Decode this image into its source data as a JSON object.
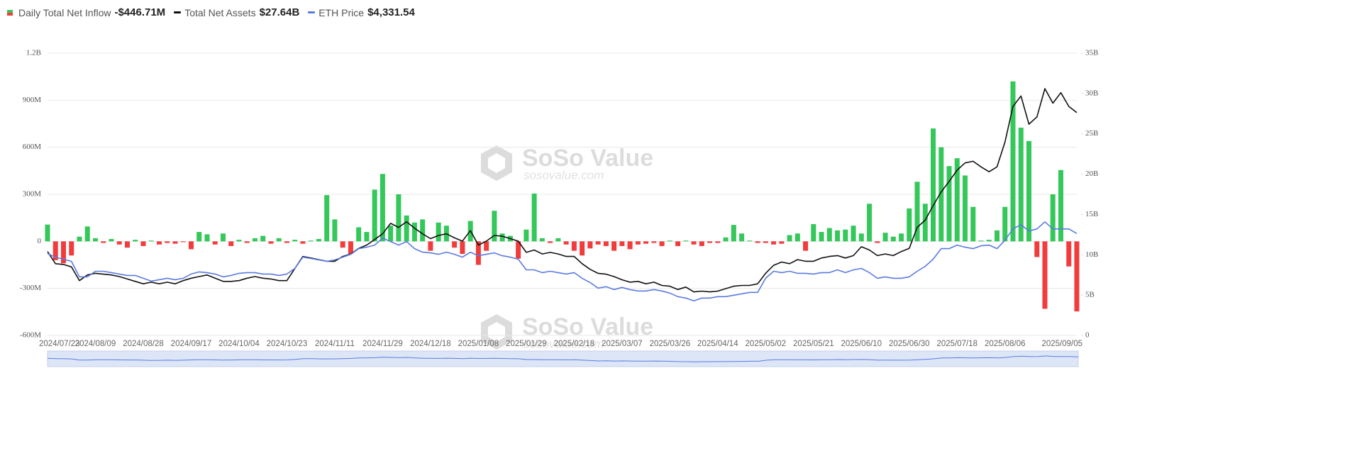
{
  "chart_data": {
    "type": "bar-line",
    "watermark": {
      "name": "SoSo Value",
      "url": "sosovalue.com"
    },
    "categories": [
      "2024/07/23",
      null,
      null,
      null,
      null,
      null,
      "2024/08/09",
      null,
      null,
      null,
      null,
      null,
      "2024/08/28",
      null,
      null,
      null,
      null,
      null,
      "2024/09/17",
      null,
      null,
      null,
      null,
      null,
      "2024/10/04",
      null,
      null,
      null,
      null,
      null,
      "2024/10/23",
      null,
      null,
      null,
      null,
      null,
      "2024/11/11",
      null,
      null,
      null,
      null,
      null,
      "2024/11/29",
      null,
      null,
      null,
      null,
      null,
      "2024/12/18",
      null,
      null,
      null,
      null,
      null,
      "2025/01/08",
      null,
      null,
      null,
      null,
      null,
      "2025/01/29",
      null,
      null,
      null,
      null,
      null,
      "2025/02/18",
      null,
      null,
      null,
      null,
      null,
      "2025/03/07",
      null,
      null,
      null,
      null,
      null,
      "2025/03/26",
      null,
      null,
      null,
      null,
      null,
      "2025/04/14",
      null,
      null,
      null,
      null,
      null,
      "2025/05/02",
      null,
      null,
      null,
      null,
      null,
      "2025/05/21",
      null,
      null,
      null,
      null,
      null,
      "2025/06/10",
      null,
      null,
      null,
      null,
      null,
      "2025/06/30",
      null,
      null,
      null,
      null,
      null,
      "2025/07/18",
      null,
      null,
      null,
      null,
      null,
      "2025/08/06",
      null,
      null,
      null,
      null,
      null,
      null,
      null,
      null,
      "2025/09/05"
    ],
    "series": [
      {
        "name": "Daily Total Net Inflow",
        "latest_label": "-$446.71M",
        "type": "bar",
        "axis": "y",
        "color": "#34c759",
        "negative_color": "#f23c3c",
        "values": [
          107,
          -120,
          -140,
          -90,
          30,
          95,
          20,
          -10,
          15,
          -20,
          -40,
          10,
          -30,
          5,
          -20,
          -10,
          -15,
          -5,
          -50,
          60,
          45,
          -20,
          50,
          -30,
          10,
          -10,
          20,
          35,
          -15,
          20,
          -10,
          10,
          -15,
          5,
          15,
          295,
          140,
          -40,
          -80,
          90,
          60,
          330,
          430,
          100,
          300,
          165,
          120,
          140,
          -60,
          120,
          100,
          -40,
          -80,
          130,
          -150,
          -60,
          195,
          50,
          35,
          -110,
          75,
          305,
          20,
          -10,
          20,
          -20,
          -60,
          -90,
          -45,
          -20,
          -30,
          -60,
          -30,
          -50,
          -20,
          -15,
          -10,
          -30,
          5,
          -30,
          5,
          -20,
          -30,
          -10,
          -10,
          25,
          105,
          50,
          5,
          -10,
          -10,
          -20,
          -15,
          40,
          50,
          -60,
          110,
          60,
          85,
          70,
          75,
          100,
          50,
          240,
          -10,
          55,
          30,
          50,
          210,
          380,
          240,
          720,
          600,
          480,
          530,
          420,
          220,
          5,
          10,
          70,
          220,
          1020,
          725,
          640,
          -100,
          -430,
          300,
          455,
          -160,
          -446.71
        ]
      },
      {
        "name": "Total Net Assets",
        "latest_label": "$27.64B",
        "type": "line",
        "axis": "y2",
        "color": "#111111",
        "values": [
          10.4,
          8.9,
          8.8,
          8.5,
          6.8,
          7.5,
          7.7,
          7.6,
          7.5,
          7.3,
          7.0,
          6.7,
          6.4,
          6.6,
          6.4,
          6.6,
          6.4,
          6.8,
          7.1,
          7.3,
          7.5,
          7.1,
          6.7,
          6.7,
          6.8,
          7.1,
          7.3,
          7.1,
          7.0,
          6.8,
          6.8,
          8.3,
          9.8,
          9.6,
          9.4,
          9.2,
          9.2,
          9.8,
          10.1,
          10.8,
          11.2,
          11.9,
          12.6,
          13.9,
          13.4,
          14.1,
          13.3,
          12.6,
          12.0,
          12.4,
          12.6,
          12.1,
          11.7,
          13.0,
          11.2,
          11.7,
          12.4,
          12.3,
          12.0,
          11.7,
          10.3,
          10.6,
          10.1,
          10.3,
          10.1,
          9.8,
          9.8,
          8.9,
          8.2,
          7.7,
          7.6,
          7.3,
          6.9,
          6.6,
          6.7,
          6.4,
          6.6,
          6.2,
          6.1,
          5.7,
          6.0,
          5.4,
          5.5,
          5.4,
          5.5,
          5.8,
          6.1,
          6.2,
          6.2,
          6.4,
          7.7,
          8.7,
          9.1,
          8.9,
          9.4,
          9.2,
          9.2,
          9.6,
          9.8,
          9.9,
          9.6,
          9.9,
          11.0,
          10.6,
          9.9,
          10.1,
          9.9,
          10.4,
          10.8,
          13.4,
          14.3,
          16.1,
          17.8,
          19.1,
          20.5,
          21.4,
          21.6,
          20.9,
          20.3,
          20.9,
          24.0,
          28.4,
          29.7,
          26.2,
          27.1,
          30.6,
          28.8,
          30.1,
          28.4,
          27.64
        ]
      },
      {
        "name": "ETH Price",
        "latest_label": "$4,331.54",
        "type": "line",
        "axis": "y3",
        "color": "#5b7be0",
        "values": [
          3480,
          3330,
          3240,
          3150,
          2490,
          2490,
          2730,
          2730,
          2670,
          2610,
          2550,
          2550,
          2430,
          2310,
          2370,
          2430,
          2370,
          2430,
          2610,
          2700,
          2670,
          2610,
          2490,
          2550,
          2640,
          2670,
          2670,
          2610,
          2610,
          2550,
          2610,
          2850,
          3330,
          3270,
          3210,
          3150,
          3210,
          3330,
          3450,
          3690,
          3750,
          3840,
          4140,
          3990,
          3840,
          3990,
          3690,
          3540,
          3510,
          3450,
          3540,
          3450,
          3330,
          3540,
          3390,
          3450,
          3510,
          3390,
          3330,
          3240,
          2790,
          2790,
          2670,
          2730,
          2670,
          2610,
          2670,
          2430,
          2250,
          2010,
          2070,
          1950,
          2040,
          1950,
          1890,
          1890,
          1950,
          1890,
          1800,
          1650,
          1590,
          1470,
          1590,
          1590,
          1650,
          1650,
          1710,
          1770,
          1830,
          1830,
          2430,
          2730,
          2670,
          2730,
          2640,
          2640,
          2610,
          2670,
          2670,
          2790,
          2670,
          2790,
          2850,
          2670,
          2430,
          2490,
          2430,
          2430,
          2490,
          2730,
          2940,
          3240,
          3690,
          3690,
          3840,
          3750,
          3690,
          3810,
          3840,
          3690,
          4050,
          4530,
          4710,
          4440,
          4530,
          4830,
          4530,
          4530,
          4530,
          4331.54
        ]
      }
    ],
    "ylim": [
      -600,
      1200
    ],
    "yticks": [
      {
        "value": -600,
        "label": "-600M"
      },
      {
        "value": -300,
        "label": "-300M"
      },
      0,
      {
        "value": 300,
        "label": "300M"
      },
      {
        "value": 600,
        "label": "600M"
      },
      {
        "value": 900,
        "label": "900M"
      },
      {
        "value": 1200,
        "label": "1.2B"
      }
    ],
    "y2lim": [
      0,
      35
    ],
    "y2ticks": [
      0,
      {
        "value": 5,
        "label": "5B"
      },
      {
        "value": 10,
        "label": "10B"
      },
      {
        "value": 15,
        "label": "15B"
      },
      {
        "value": 20,
        "label": "20B"
      },
      {
        "value": 25,
        "label": "25B"
      },
      {
        "value": 30,
        "label": "30B"
      },
      {
        "value": 35,
        "label": "35B"
      }
    ],
    "y3lim": [
      0,
      12000
    ],
    "grid": true
  }
}
